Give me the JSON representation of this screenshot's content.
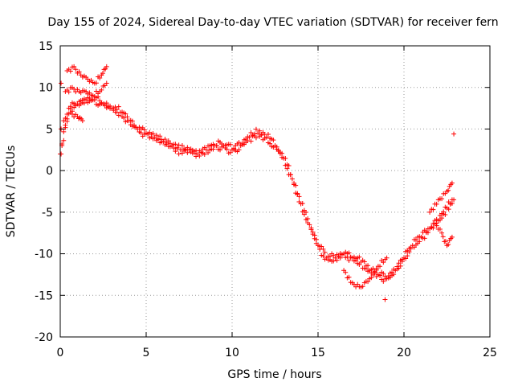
{
  "chart_data": {
    "type": "scatter",
    "title": "Day 155 of 2024, Sidereal Day-to-day VTEC variation (SDTVAR) for receiver fern",
    "xlabel": "GPS time / hours",
    "ylabel": "SDTVAR / TECUs",
    "xlim": [
      0,
      25
    ],
    "ylim": [
      -20,
      15
    ],
    "xticks": [
      "0",
      "5",
      "10",
      "15",
      "20",
      "25"
    ],
    "yticks": [
      "15",
      "10",
      "5",
      "0",
      "-5",
      "-10",
      "-15",
      "-20"
    ],
    "grid": true,
    "marker": "+",
    "marker_color": "#ff0000",
    "series": [
      {
        "name": "main-trend",
        "x": [
          0.0,
          0.5,
          1.0,
          1.5,
          2.0,
          2.5,
          3.0,
          3.5,
          4.0,
          4.5,
          5.0,
          5.5,
          6.0,
          6.5,
          7.0,
          7.5,
          8.0,
          8.5,
          9.0,
          9.5,
          10.0,
          10.5,
          11.0,
          11.5,
          12.0,
          12.5,
          13.0,
          13.5,
          14.0,
          14.5,
          15.0,
          15.5,
          16.0,
          16.5,
          17.0,
          17.5,
          18.0,
          18.5,
          19.0,
          19.5,
          20.0,
          20.5,
          21.0,
          21.5,
          22.0,
          22.5,
          22.9
        ],
        "y": [
          2.0,
          7.5,
          8.0,
          8.5,
          8.5,
          8.0,
          7.5,
          7.0,
          6.0,
          5.0,
          4.5,
          4.0,
          3.5,
          3.0,
          2.5,
          2.5,
          2.0,
          2.5,
          3.0,
          3.0,
          2.5,
          3.0,
          4.0,
          4.5,
          4.0,
          3.0,
          1.5,
          -1.0,
          -4.0,
          -6.5,
          -9.0,
          -10.5,
          -10.5,
          -10.0,
          -10.5,
          -11.0,
          -12.0,
          -12.5,
          -13.0,
          -12.0,
          -10.5,
          -9.0,
          -8.0,
          -7.0,
          -6.0,
          -4.5,
          -3.5
        ]
      },
      {
        "name": "upper-band",
        "x": [
          0.4,
          0.8,
          1.2,
          1.6,
          2.0,
          2.4,
          2.7
        ],
        "y": [
          12.0,
          12.5,
          11.5,
          11.0,
          10.5,
          11.5,
          12.5
        ]
      },
      {
        "name": "mid-band",
        "x": [
          0.3,
          0.7,
          1.1,
          1.5,
          1.9,
          2.3,
          2.7
        ],
        "y": [
          9.5,
          10.0,
          9.5,
          9.5,
          9.0,
          9.5,
          10.5
        ]
      },
      {
        "name": "lower-band",
        "x": [
          0.2,
          0.6,
          1.0,
          1.3
        ],
        "y": [
          6.0,
          7.0,
          6.5,
          6.0
        ]
      },
      {
        "name": "branch-low",
        "x": [
          16.5,
          17.0,
          17.5,
          18.0,
          18.5,
          19.0
        ],
        "y": [
          -12.0,
          -13.5,
          -14.0,
          -13.0,
          -11.5,
          -10.5
        ]
      },
      {
        "name": "branch-high",
        "x": [
          21.5,
          22.0,
          22.5,
          22.8
        ],
        "y": [
          -5.0,
          -3.5,
          -2.5,
          -1.5
        ]
      },
      {
        "name": "late-descent",
        "x": [
          21.8,
          22.2,
          22.5,
          22.8
        ],
        "y": [
          -6.0,
          -7.5,
          -9.0,
          -8.0
        ]
      },
      {
        "name": "outliers",
        "x": [
          0.05,
          0.05,
          0.05,
          18.9,
          22.9
        ],
        "y": [
          10.5,
          5.0,
          2.0,
          -15.5,
          4.4
        ]
      }
    ]
  }
}
